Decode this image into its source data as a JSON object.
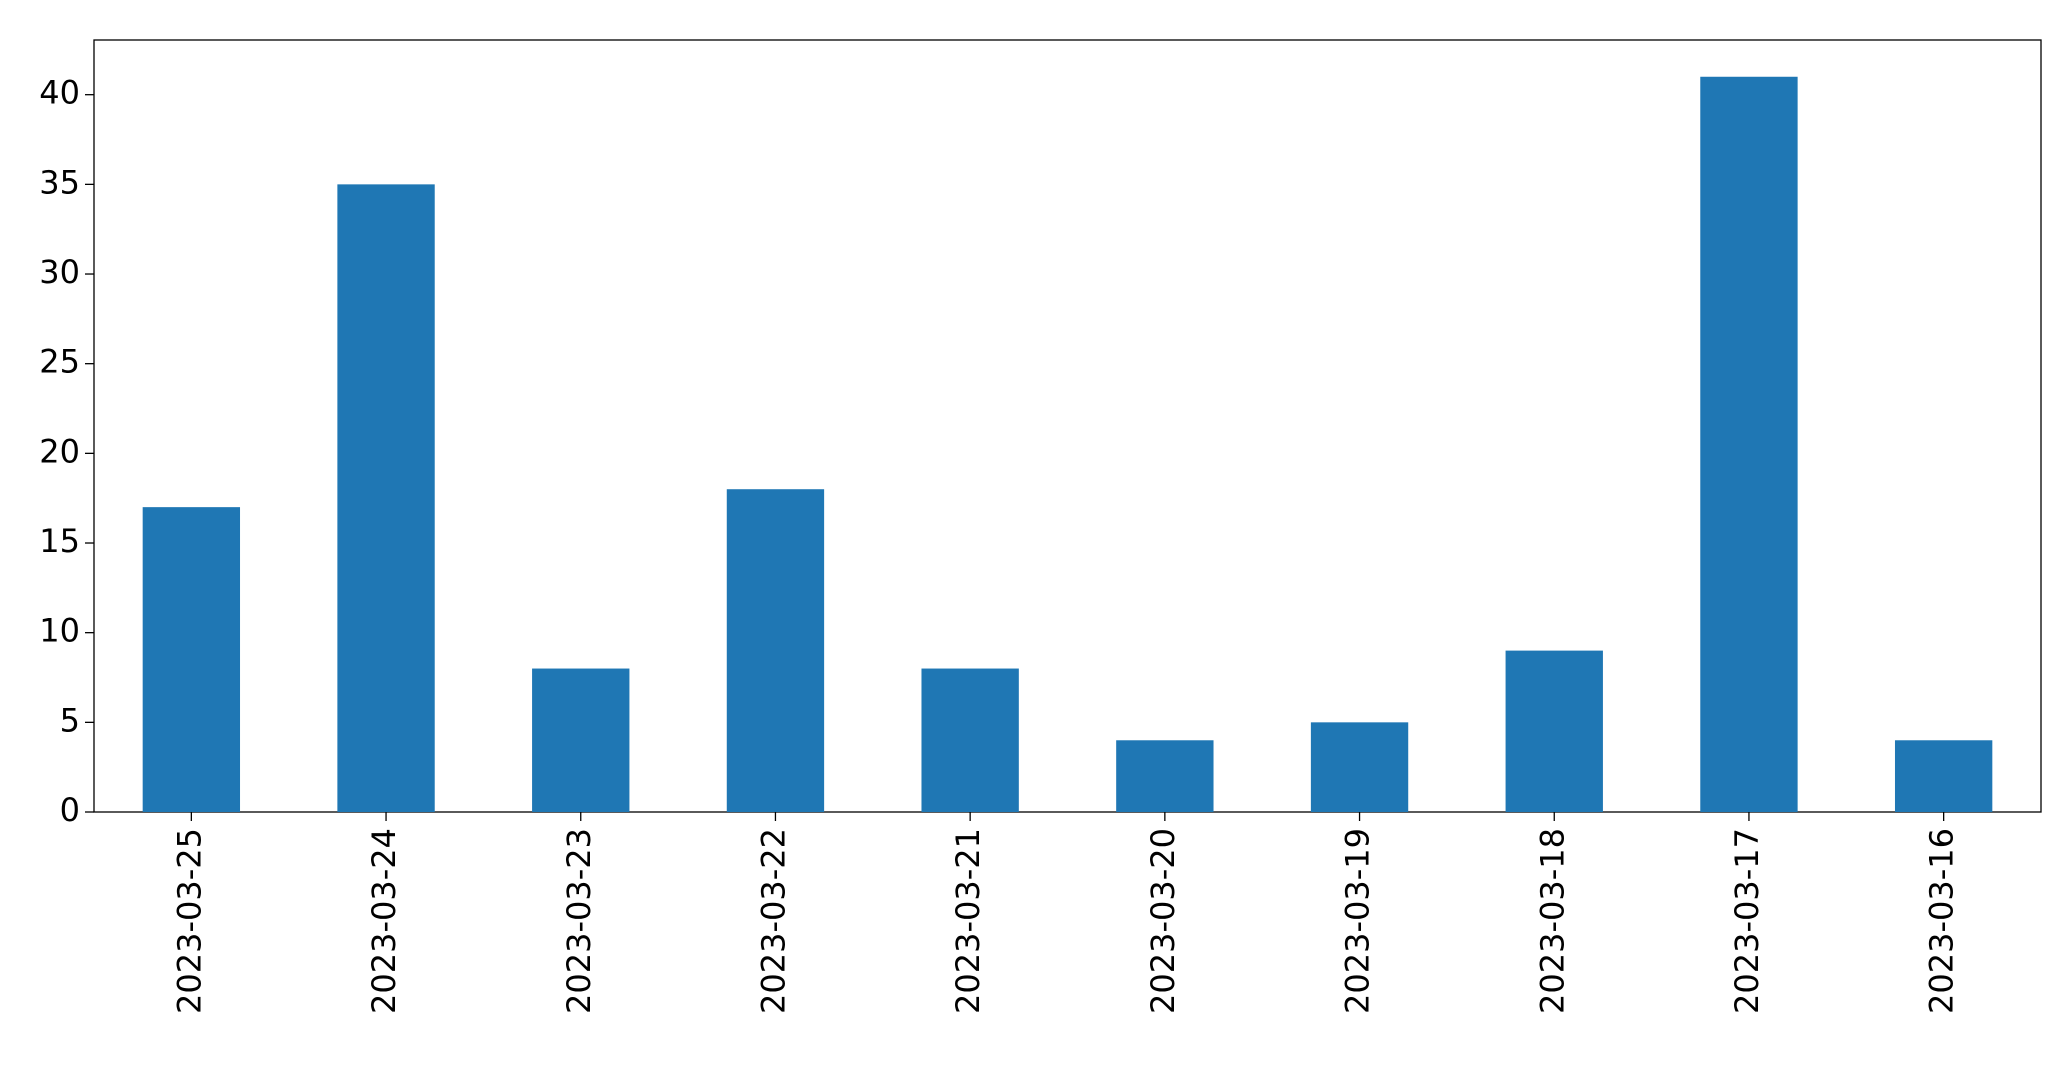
{
  "chart_data": {
    "type": "bar",
    "categories": [
      "2023-03-25",
      "2023-03-24",
      "2023-03-23",
      "2023-03-22",
      "2023-03-21",
      "2023-03-20",
      "2023-03-19",
      "2023-03-18",
      "2023-03-17",
      "2023-03-16"
    ],
    "values": [
      17,
      35,
      8,
      18,
      8,
      4,
      5,
      9,
      41,
      4
    ],
    "color": "#1f77b4",
    "ylim": [
      0,
      43.05
    ],
    "yticks": [
      0,
      5,
      10,
      15,
      20,
      25,
      30,
      35,
      40
    ],
    "grid": false
  }
}
